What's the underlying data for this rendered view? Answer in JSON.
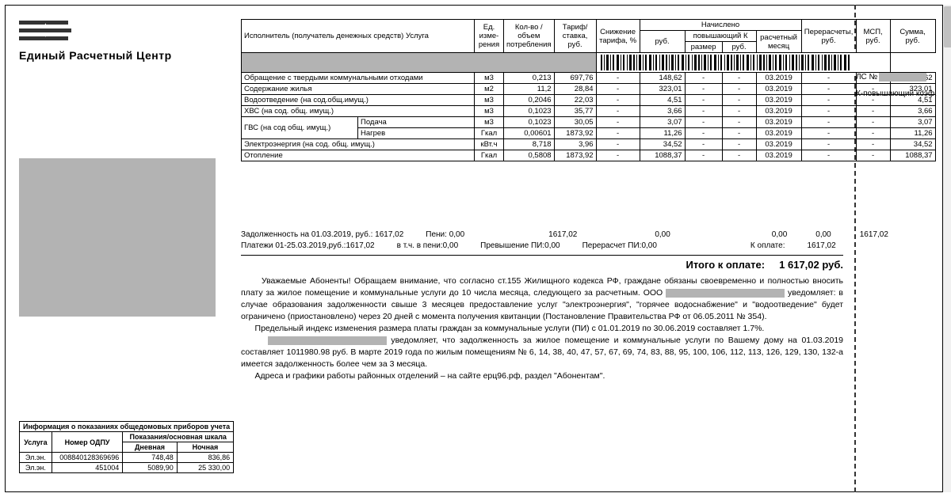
{
  "brand": "Единый Расчетный Центр",
  "right": {
    "ls": "ЛС №",
    "coef": "К-повышающий коэф."
  },
  "table": {
    "headers": {
      "svc": "Исполнитель (получатель денежных средств) Услуга",
      "unit": "Ед. изме-рения",
      "qty": "Кол-во / объем потребления",
      "rate": "Тариф/ ставка, руб.",
      "disc": "Снижение тарифа, %",
      "accr": "Начислено",
      "rub": "руб.",
      "over": "повышающий К",
      "over_sz": "размер",
      "over_rub": "руб.",
      "period": "расчетный месяц",
      "recalc": "Перерасчеты, руб.",
      "msp": "МСП, руб.",
      "sum": "Сумма, руб."
    },
    "rows": [
      {
        "svc": "Обращение с твердыми коммунальными отходами",
        "unit": "м3",
        "qty": "0,213",
        "rate": "697,76",
        "disc": "-",
        "rub": "148,62",
        "osz": "-",
        "orub": "-",
        "per": "03.2019",
        "rec": "-",
        "msp": "-",
        "sum": "148,62"
      },
      {
        "svc": "Содержание жилья",
        "unit": "м2",
        "qty": "11,2",
        "rate": "28,84",
        "disc": "-",
        "rub": "323,01",
        "osz": "-",
        "orub": "-",
        "per": "03.2019",
        "rec": "-",
        "msp": "-",
        "sum": "323,01"
      },
      {
        "svc": "Водоотведение (на сод.общ.имущ.)",
        "unit": "м3",
        "qty": "0,2046",
        "rate": "22,03",
        "disc": "-",
        "rub": "4,51",
        "osz": "-",
        "orub": "-",
        "per": "03.2019",
        "rec": "-",
        "msp": "-",
        "sum": "4,51"
      },
      {
        "svc": "ХВС (на сод. общ. имущ.)",
        "unit": "м3",
        "qty": "0,1023",
        "rate": "35,77",
        "disc": "-",
        "rub": "3,66",
        "osz": "-",
        "orub": "-",
        "per": "03.2019",
        "rec": "-",
        "msp": "-",
        "sum": "3,66"
      },
      {
        "svc": "ГВС (на сод общ. имущ.)",
        "sub": "Подача",
        "unit": "м3",
        "qty": "0,1023",
        "rate": "30,05",
        "disc": "-",
        "rub": "3,07",
        "osz": "-",
        "orub": "-",
        "per": "03.2019",
        "rec": "-",
        "msp": "-",
        "sum": "3,07"
      },
      {
        "svc": "",
        "sub": "Нагрев",
        "unit": "Гкал",
        "qty": "0,00601",
        "rate": "1873,92",
        "disc": "-",
        "rub": "11,26",
        "osz": "-",
        "orub": "-",
        "per": "03.2019",
        "rec": "-",
        "msp": "-",
        "sum": "11,26"
      },
      {
        "svc": "Электроэнергия (на сод. общ. имущ.)",
        "unit": "кВт.ч",
        "qty": "8,718",
        "rate": "3,96",
        "disc": "-",
        "rub": "34,52",
        "osz": "-",
        "orub": "-",
        "per": "03.2019",
        "rec": "-",
        "msp": "-",
        "sum": "34,52"
      },
      {
        "svc": "Отопление",
        "unit": "Гкал",
        "qty": "0,5808",
        "rate": "1873,92",
        "disc": "-",
        "rub": "1088,37",
        "osz": "-",
        "orub": "-",
        "per": "03.2019",
        "rec": "-",
        "msp": "-",
        "sum": "1088,37"
      }
    ]
  },
  "summary": {
    "l1": {
      "a": "Задолженность на 01.03.2019, руб.: 1617,02",
      "b": "Пени: 0,00",
      "c": "1617,02",
      "d": "0,00",
      "e": "0,00",
      "f": "0,00",
      "g": "1617,02"
    },
    "l2": {
      "a": "Платежи 01-25.03.2019,руб.:1617,02",
      "b": "в т.ч. в пени:0,00",
      "c": "Превышение ПИ:0,00",
      "d": "Перерасчет ПИ:0,00",
      "e": "К оплате:",
      "f": "1617,02"
    }
  },
  "total": {
    "label": "Итого к оплате:",
    "value": "1 617,02 руб."
  },
  "notice": {
    "p1": "Уважаемые Абоненты! Обращаем внимание, что согласно ст.155 Жилищного кодекса РФ, граждане обязаны своевременно и полностью вносить плату за жилое помещение и коммунальные услуги до 10 числа месяца, следующего за расчетным. ООО",
    "p2": " уведомляет: в случае образования задолженности свыше 3 месяцев предоставление услуг \"электроэнергия\", \"горячее водоснабжение\" и \"водоотведение\" будет ограничено (приостановлено) через 20 дней с момента получения квитанции (Постановление Правительства РФ от 06.05.2011 № 354).",
    "p3": "Предельный индекс изменения размера платы граждан за коммунальные услуги (ПИ) с 01.01.2019 по 30.06.2019 составляет 1.7%.",
    "p4": " уведомляет, что задолженность за жилое помещение и коммунальные услуги по Вашему дому на 01.03.2019 составляет 1011980.98 руб. В марте 2019 года по жилым помещениям № 6, 14, 38, 40, 47, 57, 67, 69, 74, 83, 88, 95, 100, 106, 112, 113, 126, 129, 130, 132-а имеется задолженность более чем за 3 месяца.",
    "p5": "Адреса и графики работы районных отделений – на сайте ерц96.рф, раздел \"Абонентам\"."
  },
  "meter": {
    "caption": "Информация о показаниях общедомовых приборов учета",
    "h": {
      "svc": "Услуга",
      "num": "Номер ОДПУ",
      "scale": "Показания/основная шкала",
      "day": "Дневная",
      "night": "Ночная"
    },
    "rows": [
      {
        "svc": "Эл.эн.",
        "num": "008840128369696",
        "day": "748,48",
        "night": "836,86"
      },
      {
        "svc": "Эл.эн.",
        "num": "451004",
        "day": "5089,90",
        "night": "25 330,00"
      }
    ]
  }
}
